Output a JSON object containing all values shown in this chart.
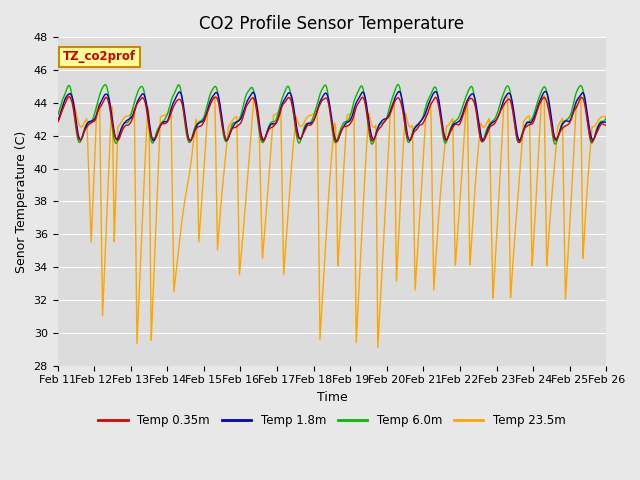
{
  "title": "CO2 Profile Sensor Temperature",
  "xlabel": "Time",
  "ylabel": "Senor Temperature (C)",
  "ylim": [
    28,
    48
  ],
  "yticks": [
    28,
    30,
    32,
    34,
    36,
    38,
    40,
    42,
    44,
    46,
    48
  ],
  "tick_labels": [
    "Feb 11",
    "Feb 12",
    "Feb 13",
    "Feb 14",
    "Feb 15",
    "Feb 16",
    "Feb 17",
    "Feb 18",
    "Feb 19",
    "Feb 20",
    "Feb 21",
    "Feb 22",
    "Feb 23",
    "Feb 24",
    "Feb 25",
    "Feb 26"
  ],
  "colors": {
    "red": "#DD0000",
    "blue": "#0000CC",
    "green": "#00BB00",
    "orange": "#FFA500"
  },
  "legend_labels": [
    "Temp 0.35m",
    "Temp 1.8m",
    "Temp 6.0m",
    "Temp 23.5m"
  ],
  "annotation_text": "TZ_co2prof",
  "annotation_box_color": "#FFFF99",
  "annotation_box_edge": "#CC8800",
  "annotation_text_color": "#CC0000",
  "background_color": "#E8E8E8",
  "plot_bg_color": "#DCDCDC",
  "grid_color": "#FFFFFF",
  "title_fontsize": 12,
  "axis_fontsize": 9,
  "tick_fontsize": 8,
  "linewidth": 1.0
}
